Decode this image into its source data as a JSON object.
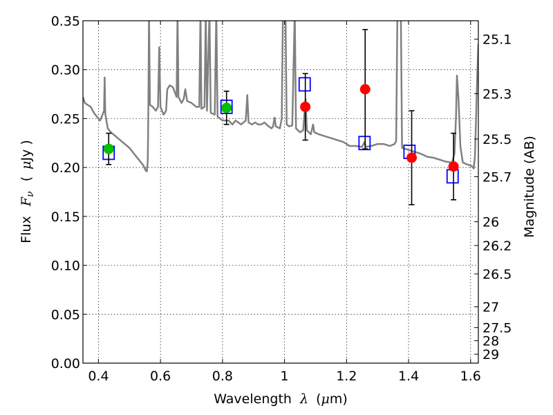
{
  "chart_data": {
    "type": "scatter",
    "xlabel_text": "Wavelength",
    "xlabel_math": "λ",
    "xlabel_unit_open": "(",
    "xlabel_unit_mu": "μ",
    "xlabel_unit_close": "m)",
    "ylabel_text": "Flux",
    "ylabel_math_F": "F",
    "ylabel_math_sub": "ν",
    "ylabel_unit_open": "(",
    "ylabel_unit_mu": "μ",
    "ylabel_unit_close": "Jy )",
    "y2label": "Magnitude (AB)",
    "xlim": [
      0.35,
      1.625
    ],
    "ylim": [
      0.0,
      0.35
    ],
    "grid": true,
    "x_ticks": [
      "0.4",
      "0.6",
      "0.8",
      "1",
      "1.2",
      "1.4",
      "1.6"
    ],
    "x_tick_values": [
      0.4,
      0.6,
      0.8,
      1.0,
      1.2,
      1.4,
      1.6
    ],
    "y_ticks": [
      "0.00",
      "0.05",
      "0.10",
      "0.15",
      "0.20",
      "0.25",
      "0.30",
      "0.35"
    ],
    "y_tick_values": [
      0.0,
      0.05,
      0.1,
      0.15,
      0.2,
      0.25,
      0.3,
      0.35
    ],
    "mag_ticks": [
      "25.1",
      "25.3",
      "25.5",
      "25.7",
      "26",
      "26.2",
      "26.5",
      "27",
      "27.5",
      "28",
      "29"
    ],
    "mag_tick_values": [
      25.1,
      25.3,
      25.5,
      25.7,
      26.0,
      26.2,
      26.5,
      27.0,
      27.5,
      28.0,
      29.0
    ],
    "colors": {
      "model": "#808080",
      "model_points": "#0000ff",
      "optical": "#00c000",
      "infrared": "#ff0000",
      "errorbar": "#000000",
      "grid": "#000000"
    },
    "template_spectrum": [
      [
        0.35,
        0.272
      ],
      [
        0.356,
        0.266
      ],
      [
        0.365,
        0.264
      ],
      [
        0.375,
        0.262
      ],
      [
        0.385,
        0.256
      ],
      [
        0.395,
        0.252
      ],
      [
        0.405,
        0.248
      ],
      [
        0.412,
        0.253
      ],
      [
        0.418,
        0.258
      ],
      [
        0.42,
        0.292
      ],
      [
        0.422,
        0.255
      ],
      [
        0.43,
        0.24
      ],
      [
        0.44,
        0.236
      ],
      [
        0.455,
        0.232
      ],
      [
        0.47,
        0.228
      ],
      [
        0.485,
        0.224
      ],
      [
        0.5,
        0.22
      ],
      [
        0.515,
        0.214
      ],
      [
        0.53,
        0.208
      ],
      [
        0.545,
        0.202
      ],
      [
        0.552,
        0.197
      ],
      [
        0.556,
        0.196
      ],
      [
        0.559,
        0.206
      ],
      [
        0.561,
        0.262
      ],
      [
        0.563,
        0.36
      ],
      [
        0.566,
        0.264
      ],
      [
        0.575,
        0.262
      ],
      [
        0.585,
        0.258
      ],
      [
        0.592,
        0.262
      ],
      [
        0.596,
        0.323
      ],
      [
        0.6,
        0.262
      ],
      [
        0.61,
        0.254
      ],
      [
        0.618,
        0.258
      ],
      [
        0.622,
        0.28
      ],
      [
        0.63,
        0.284
      ],
      [
        0.64,
        0.282
      ],
      [
        0.652,
        0.272
      ],
      [
        0.655,
        0.36
      ],
      [
        0.658,
        0.272
      ],
      [
        0.668,
        0.266
      ],
      [
        0.675,
        0.27
      ],
      [
        0.68,
        0.28
      ],
      [
        0.686,
        0.268
      ],
      [
        0.7,
        0.266
      ],
      [
        0.715,
        0.262
      ],
      [
        0.725,
        0.262
      ],
      [
        0.729,
        0.36
      ],
      [
        0.732,
        0.26
      ],
      [
        0.742,
        0.262
      ],
      [
        0.746,
        0.36
      ],
      [
        0.75,
        0.258
      ],
      [
        0.758,
        0.36
      ],
      [
        0.762,
        0.256
      ],
      [
        0.775,
        0.254
      ],
      [
        0.78,
        0.36
      ],
      [
        0.784,
        0.252
      ],
      [
        0.8,
        0.248
      ],
      [
        0.82,
        0.248
      ],
      [
        0.832,
        0.244
      ],
      [
        0.842,
        0.248
      ],
      [
        0.86,
        0.244
      ],
      [
        0.875,
        0.248
      ],
      [
        0.88,
        0.274
      ],
      [
        0.884,
        0.246
      ],
      [
        0.895,
        0.244
      ],
      [
        0.905,
        0.246
      ],
      [
        0.915,
        0.244
      ],
      [
        0.925,
        0.244
      ],
      [
        0.935,
        0.246
      ],
      [
        0.945,
        0.243
      ],
      [
        0.958,
        0.24
      ],
      [
        0.963,
        0.242
      ],
      [
        0.968,
        0.251
      ],
      [
        0.972,
        0.242
      ],
      [
        0.985,
        0.24
      ],
      [
        0.991,
        0.25
      ],
      [
        0.995,
        0.36
      ],
      [
        1.003,
        0.36
      ],
      [
        1.007,
        0.244
      ],
      [
        1.015,
        0.242
      ],
      [
        1.025,
        0.243
      ],
      [
        1.033,
        0.36
      ],
      [
        1.037,
        0.24
      ],
      [
        1.05,
        0.236
      ],
      [
        1.06,
        0.238
      ],
      [
        1.068,
        0.27
      ],
      [
        1.072,
        0.238
      ],
      [
        1.085,
        0.234
      ],
      [
        1.092,
        0.244
      ],
      [
        1.096,
        0.236
      ],
      [
        1.11,
        0.234
      ],
      [
        1.13,
        0.232
      ],
      [
        1.15,
        0.23
      ],
      [
        1.17,
        0.228
      ],
      [
        1.19,
        0.226
      ],
      [
        1.21,
        0.222
      ],
      [
        1.23,
        0.222
      ],
      [
        1.25,
        0.221
      ],
      [
        1.258,
        0.226
      ],
      [
        1.262,
        0.221
      ],
      [
        1.28,
        0.222
      ],
      [
        1.3,
        0.224
      ],
      [
        1.32,
        0.224
      ],
      [
        1.34,
        0.222
      ],
      [
        1.355,
        0.224
      ],
      [
        1.36,
        0.227
      ],
      [
        1.364,
        0.36
      ],
      [
        1.375,
        0.36
      ],
      [
        1.379,
        0.22
      ],
      [
        1.4,
        0.218
      ],
      [
        1.42,
        0.216
      ],
      [
        1.44,
        0.214
      ],
      [
        1.46,
        0.211
      ],
      [
        1.48,
        0.21
      ],
      [
        1.5,
        0.208
      ],
      [
        1.52,
        0.206
      ],
      [
        1.54,
        0.205
      ],
      [
        1.548,
        0.214
      ],
      [
        1.553,
        0.252
      ],
      [
        1.556,
        0.294
      ],
      [
        1.561,
        0.27
      ],
      [
        1.567,
        0.222
      ],
      [
        1.575,
        0.205
      ],
      [
        1.59,
        0.203
      ],
      [
        1.6,
        0.202
      ],
      [
        1.605,
        0.201
      ],
      [
        1.61,
        0.199
      ],
      [
        1.614,
        0.211
      ],
      [
        1.618,
        0.255
      ],
      [
        1.622,
        0.3
      ],
      [
        1.625,
        0.326
      ]
    ],
    "model_points": [
      {
        "x": 0.433,
        "y": 0.215
      },
      {
        "x": 0.813,
        "y": 0.262
      },
      {
        "x": 1.065,
        "y": 0.285
      },
      {
        "x": 1.258,
        "y": 0.225
      },
      {
        "x": 1.403,
        "y": 0.216
      },
      {
        "x": 1.542,
        "y": 0.191
      }
    ],
    "optical_points": [
      {
        "x": 0.433,
        "y": 0.219,
        "yerr": 0.016
      },
      {
        "x": 0.813,
        "y": 0.261,
        "yerr": 0.017
      }
    ],
    "infrared_points": [
      {
        "x": 1.067,
        "y": 0.262,
        "yerr": 0.034
      },
      {
        "x": 1.26,
        "y": 0.28,
        "yerr": 0.061
      },
      {
        "x": 1.41,
        "y": 0.21,
        "yerr": 0.048
      },
      {
        "x": 1.545,
        "y": 0.201,
        "yerr": 0.034
      }
    ]
  }
}
